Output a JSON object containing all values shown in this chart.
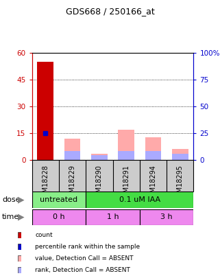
{
  "title": "GDS668 / 250166_at",
  "samples": [
    "GSM18228",
    "GSM18229",
    "GSM18290",
    "GSM18291",
    "GSM18294",
    "GSM18295"
  ],
  "count_values": [
    55,
    0,
    0,
    0,
    0,
    0
  ],
  "count_color": "#cc0000",
  "rank_values": [
    15,
    0,
    0,
    0,
    0,
    0
  ],
  "rank_color": "#0000cc",
  "absent_value_bars": [
    0,
    20,
    5.5,
    28,
    21,
    10
  ],
  "absent_value_color": "#ffaaaa",
  "absent_rank_bars": [
    0,
    8,
    4.5,
    8.5,
    8.5,
    6
  ],
  "absent_rank_color": "#aaaaff",
  "ylim_left": [
    0,
    60
  ],
  "ylim_right": [
    0,
    100
  ],
  "yticks_left": [
    0,
    15,
    30,
    45,
    60
  ],
  "yticks_right": [
    0,
    25,
    50,
    75,
    100
  ],
  "ytick_labels_left": [
    "0",
    "15",
    "30",
    "45",
    "60"
  ],
  "ytick_labels_right": [
    "0",
    "25",
    "50",
    "75",
    "100%"
  ],
  "dose_labels": [
    {
      "text": "untreated",
      "start": 0,
      "end": 2,
      "color": "#88ee88"
    },
    {
      "text": "0.1 uM IAA",
      "start": 2,
      "end": 6,
      "color": "#44dd44"
    }
  ],
  "time_labels": [
    {
      "text": "0 h",
      "start": 0,
      "end": 2,
      "color": "#ee88ee"
    },
    {
      "text": "1 h",
      "start": 2,
      "end": 4,
      "color": "#ee88ee"
    },
    {
      "text": "3 h",
      "start": 4,
      "end": 6,
      "color": "#ee88ee"
    }
  ],
  "legend_items": [
    {
      "color": "#cc0000",
      "label": "count"
    },
    {
      "color": "#0000cc",
      "label": "percentile rank within the sample"
    },
    {
      "color": "#ffaaaa",
      "label": "value, Detection Call = ABSENT"
    },
    {
      "color": "#aaaaff",
      "label": "rank, Detection Call = ABSENT"
    }
  ],
  "background_color": "#ffffff",
  "plot_bg_color": "#ffffff",
  "left_yaxis_color": "#cc0000",
  "right_yaxis_color": "#0000cc",
  "sample_label_bg": "#cccccc",
  "sample_label_border": "#333333"
}
